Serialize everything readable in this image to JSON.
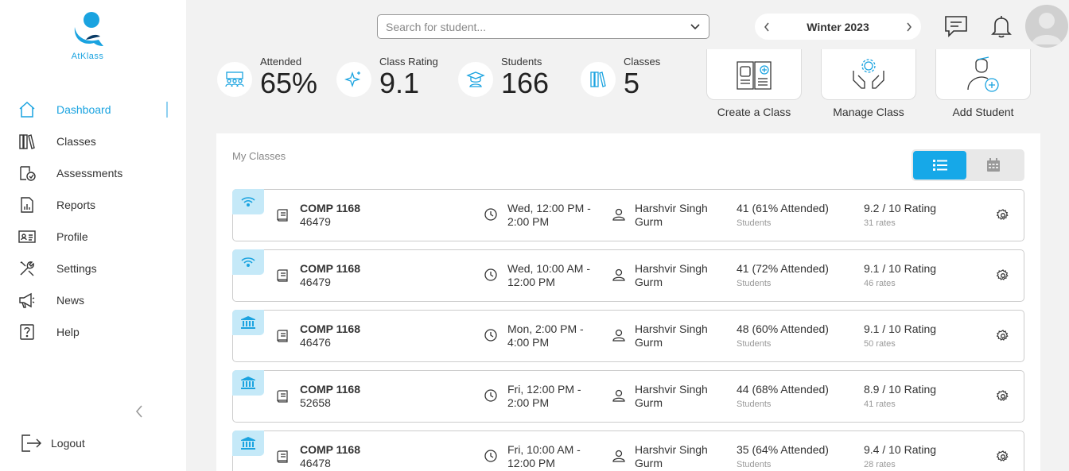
{
  "app": {
    "logo_text": "AtKlass"
  },
  "sidebar": {
    "items": [
      {
        "label": "Dashboard",
        "icon": "home-icon",
        "active": true
      },
      {
        "label": "Classes",
        "icon": "books-icon"
      },
      {
        "label": "Assessments",
        "icon": "assessment-icon"
      },
      {
        "label": "Reports",
        "icon": "report-icon"
      },
      {
        "label": "Profile",
        "icon": "id-card-icon"
      },
      {
        "label": "Settings",
        "icon": "tools-icon"
      },
      {
        "label": "News",
        "icon": "megaphone-icon"
      },
      {
        "label": "Help",
        "icon": "help-icon"
      }
    ],
    "logout_label": "Logout"
  },
  "header": {
    "search_placeholder": "Search for student...",
    "term": "Winter 2023"
  },
  "stats": [
    {
      "label": "Attended",
      "value": "65%",
      "icon": "group-icon"
    },
    {
      "label": "Class Rating",
      "value": "9.1",
      "icon": "sparkle-icon"
    },
    {
      "label": "Students",
      "value": "166",
      "icon": "graduate-icon"
    },
    {
      "label": "Classes",
      "value": "5",
      "icon": "books-icon"
    }
  ],
  "actions": [
    {
      "label": "Create a Class"
    },
    {
      "label": "Manage Class"
    },
    {
      "label": "Add Student"
    }
  ],
  "main": {
    "title": "My Classes",
    "classes": [
      {
        "mode": "online",
        "code": "COMP 1168",
        "section": "46479",
        "time1": "Wed, 12:00 PM -",
        "time2": "2:00 PM",
        "instr1": "Harshvir Singh",
        "instr2": "Gurm",
        "students": "41 (61% Attended)",
        "students_sub": "Students",
        "rating": "9.2 / 10 Rating",
        "rates": "31 rates"
      },
      {
        "mode": "online",
        "code": "COMP 1168",
        "section": "46479",
        "time1": "Wed, 10:00 AM -",
        "time2": "12:00 PM",
        "instr1": "Harshvir Singh",
        "instr2": "Gurm",
        "students": "41 (72% Attended)",
        "students_sub": "Students",
        "rating": "9.1 / 10 Rating",
        "rates": "46 rates"
      },
      {
        "mode": "campus",
        "code": "COMP 1168",
        "section": "46476",
        "time1": "Mon, 2:00 PM -",
        "time2": "4:00 PM",
        "instr1": "Harshvir Singh",
        "instr2": "Gurm",
        "students": "48 (60% Attended)",
        "students_sub": "Students",
        "rating": "9.1 / 10 Rating",
        "rates": "50 rates"
      },
      {
        "mode": "campus",
        "code": "COMP 1168",
        "section": "52658",
        "time1": "Fri, 12:00 PM -",
        "time2": "2:00 PM",
        "instr1": "Harshvir Singh",
        "instr2": "Gurm",
        "students": "44 (68% Attended)",
        "students_sub": "Students",
        "rating": "8.9 / 10 Rating",
        "rates": "41 rates"
      },
      {
        "mode": "campus",
        "code": "COMP 1168",
        "section": "46478",
        "time1": "Fri, 10:00 AM -",
        "time2": "12:00 PM",
        "instr1": "Harshvir Singh",
        "instr2": "Gurm",
        "students": "35 (64% Attended)",
        "students_sub": "Students",
        "rating": "9.4 / 10 Rating",
        "rates": "28 rates"
      }
    ]
  },
  "colors": {
    "accent": "#16a8e8",
    "mode_bg": "#c5e9f8"
  }
}
